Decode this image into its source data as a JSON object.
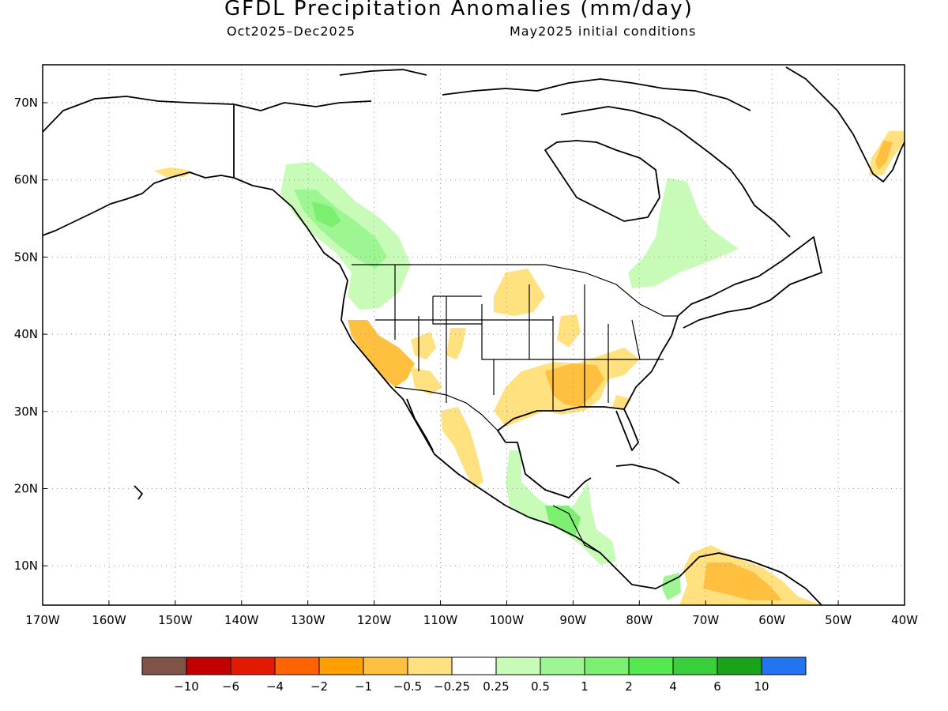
{
  "title": "GFDL Precipitation Anomalies (mm/day)",
  "period": "Oct2025–Dec2025",
  "init": "May2025 initial conditions",
  "lat_labels": [
    "70N",
    "60N",
    "50N",
    "40N",
    "30N",
    "20N",
    "10N"
  ],
  "lon_labels": [
    "170W",
    "160W",
    "150W",
    "140W",
    "130W",
    "120W",
    "110W",
    "100W",
    "90W",
    "80W",
    "70W",
    "60W",
    "50W",
    "40W"
  ],
  "legend": {
    "colors": [
      "#7f5448",
      "#c20000",
      "#e21b00",
      "#ff6400",
      "#ff9f00",
      "#ffbf3f",
      "#ffe17f",
      "#ffffff",
      "#c9fbb8",
      "#9df692",
      "#7cee70",
      "#55e750",
      "#39cf3b",
      "#18a318",
      "#2374f0"
    ],
    "labels": [
      "−10",
      "−6",
      "−4",
      "−2",
      "−1",
      "−0.5",
      "−0.25",
      "0.25",
      "0.5",
      "1",
      "2",
      "4",
      "6",
      "10"
    ]
  }
}
